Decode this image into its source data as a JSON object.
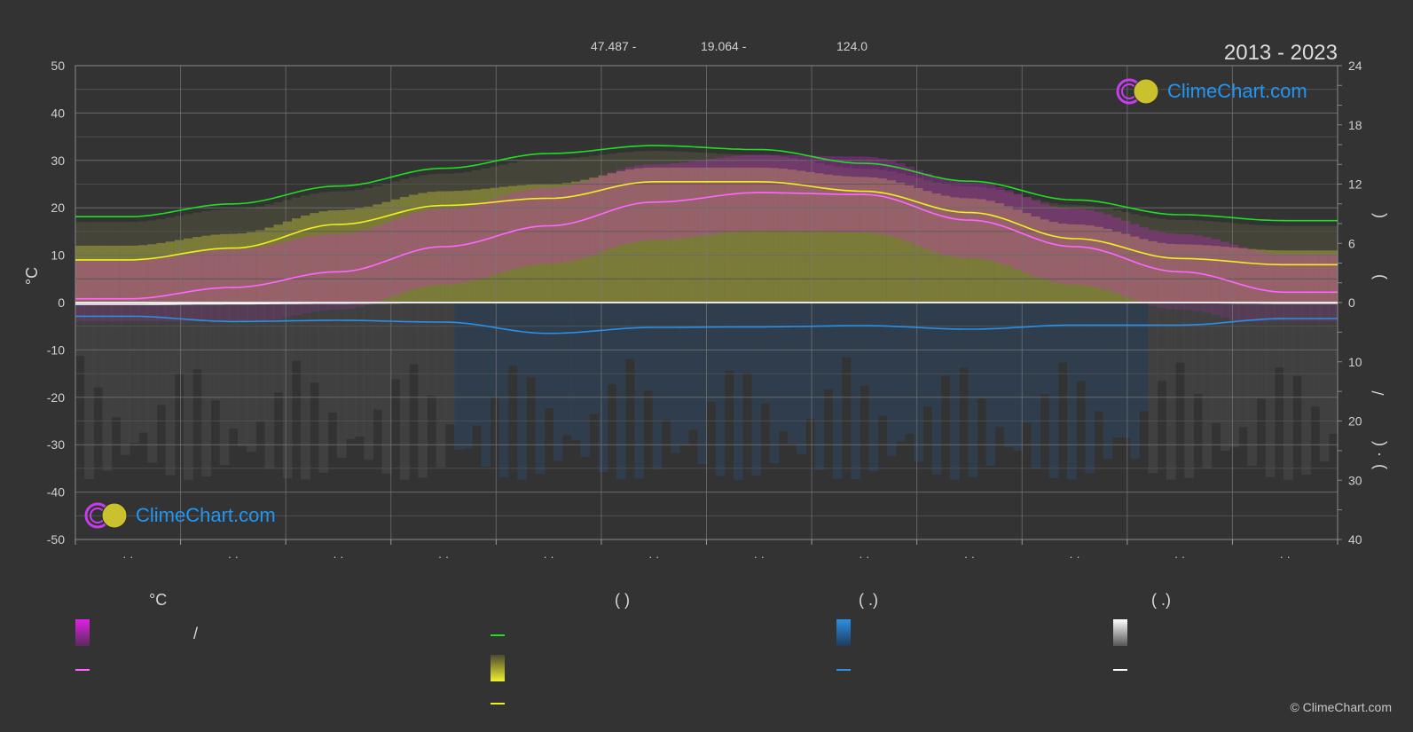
{
  "header": {
    "coord_lat": "47.487 -",
    "coord_lon": "19.064 -",
    "coord_elev": "124.0",
    "years": "2013 - 2023"
  },
  "logo": {
    "text": "ClimeChart.com"
  },
  "copyright": "© ClimeChart.com",
  "legend": {
    "col1_header": "°C",
    "col2_header": "(          )",
    "col3_header": "(   .)",
    "col4_header": "(   .)",
    "slash": "/",
    "colors": {
      "temp_range": "#e21fe8",
      "temp_mean": "#ff66ff",
      "daylight": "#22dd22",
      "sunshine_band": "#d6d62a",
      "sunshine_mean": "#f0f020",
      "rain": "#2a8fe6",
      "rain_mean": "#2a8fe6",
      "snow": "#d0d0d0",
      "snow_mean": "#ffffff"
    }
  },
  "chart_data": {
    "type": "line",
    "title": "",
    "ylabel": "°C",
    "ylim": [
      -50,
      50
    ],
    "yticks": [
      50,
      40,
      30,
      20,
      10,
      0,
      -10,
      -20,
      -30,
      -40,
      -50
    ],
    "y2_upper": {
      "ticks": [
        24,
        18,
        12,
        6,
        0
      ],
      "labels": [
        "(",
        ")"
      ]
    },
    "y2_lower": {
      "ticks": [
        0,
        10,
        20,
        30,
        40
      ],
      "labels": [
        "/",
        "(",
        "·",
        ")"
      ]
    },
    "x_month_labels": [
      "· ·",
      "· ·",
      "· ·",
      "· ·",
      "· ·",
      "· ·",
      "· ·",
      "· ·",
      "· ·",
      "· ·",
      "· ·",
      "· ·"
    ],
    "grid": true,
    "series": [
      {
        "key": "daylight",
        "axis": "hours",
        "values": [
          8.7,
          10.0,
          11.8,
          13.6,
          15.1,
          15.9,
          15.5,
          14.1,
          12.3,
          10.4,
          8.9,
          8.3
        ]
      },
      {
        "key": "sunshine_mean",
        "axis": "temp",
        "values": [
          9,
          11.5,
          16.5,
          20.5,
          22,
          25.5,
          25.5,
          23.5,
          19,
          13.5,
          9.3,
          8
        ]
      },
      {
        "key": "temp_mean",
        "axis": "temp",
        "values": [
          0.8,
          3.2,
          6.5,
          11.8,
          16.2,
          21.2,
          23.2,
          22.8,
          17.4,
          11.8,
          6.5,
          2.2
        ]
      },
      {
        "key": "rain_mean",
        "axis": "rain_mm",
        "values": [
          2.3,
          3.2,
          3.0,
          3.3,
          5.2,
          4.2,
          4.1,
          3.9,
          4.5,
          3.8,
          3.8,
          2.7
        ]
      },
      {
        "key": "snow_mean",
        "axis": "rain_mm",
        "values": [
          0.3,
          0.2,
          0.1,
          0,
          0,
          0,
          0,
          0,
          0,
          0,
          0,
          0.1
        ]
      }
    ]
  }
}
